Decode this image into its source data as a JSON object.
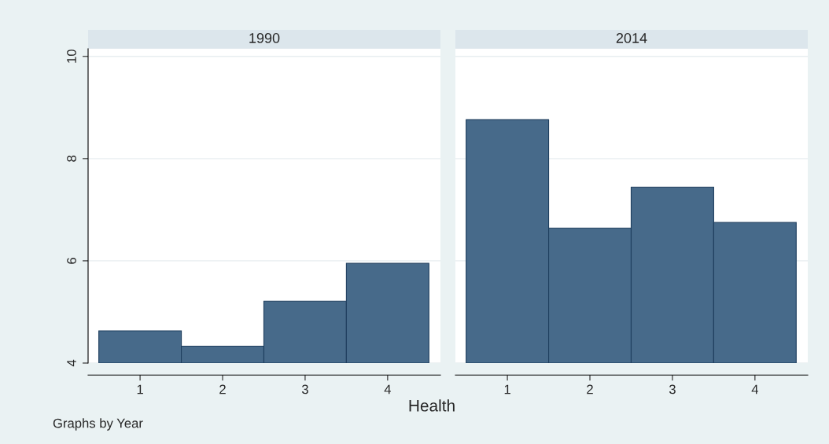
{
  "chart_data": [
    {
      "type": "bar",
      "title": "1990",
      "xlabel": "Health",
      "categories": [
        "1",
        "2",
        "3",
        "4"
      ],
      "values": [
        4.63,
        4.33,
        5.21,
        5.95
      ],
      "color": "#476a8a",
      "ylim": [
        4,
        10.15
      ],
      "yticks": [
        4,
        6,
        8,
        10
      ],
      "grid": "y",
      "annotations": [
        "Graphs by Year"
      ]
    },
    {
      "type": "bar",
      "title": "2014",
      "categories": [
        "1",
        "2",
        "3",
        "4"
      ],
      "values": [
        8.76,
        6.64,
        7.44,
        6.75
      ],
      "color": "#476a8a",
      "ylim": [
        4,
        10.15
      ],
      "yticks": [
        4,
        6,
        8,
        10
      ],
      "grid": "y",
      "tick_labels": "x"
    }
  ]
}
